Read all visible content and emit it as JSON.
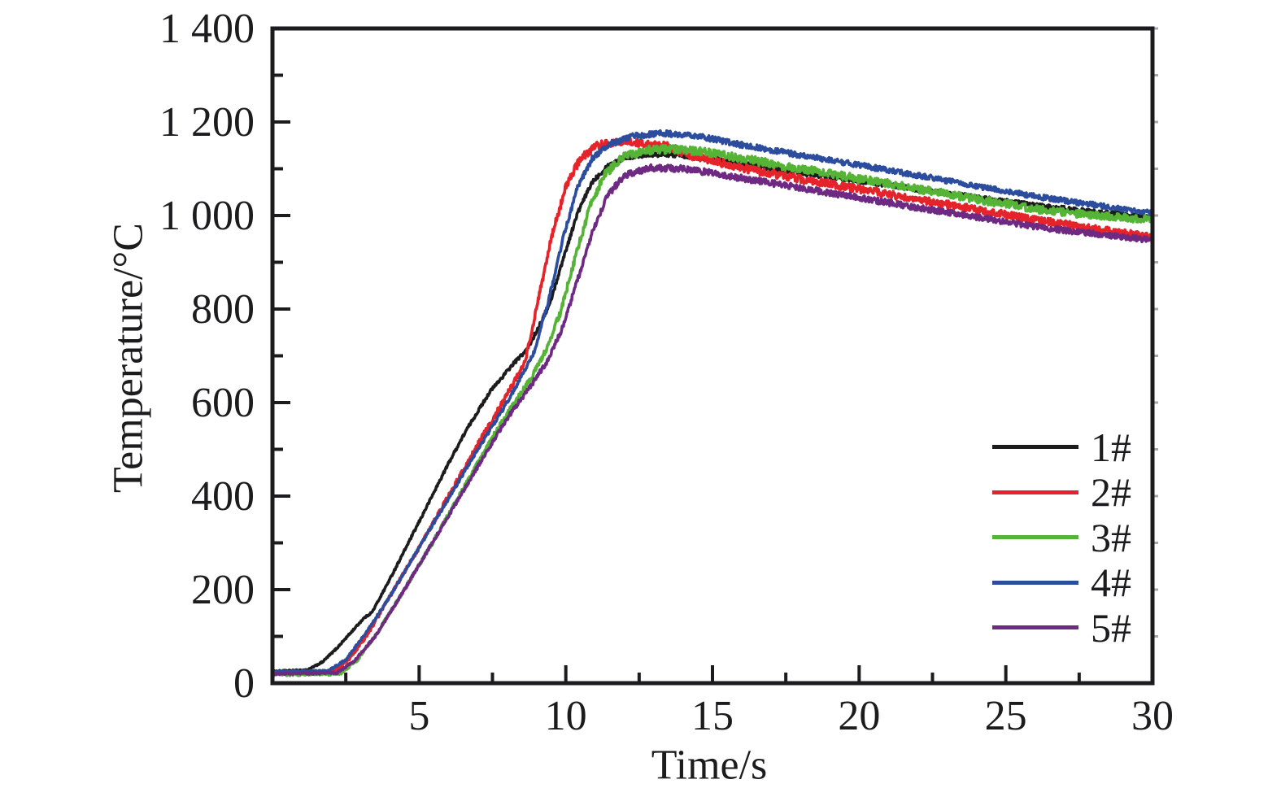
{
  "figure": {
    "background": "#ffffff",
    "frame_color": "#1c1b1d",
    "tick_color": "#1c1b1d",
    "right_edge_minor_tick_color": "#a8a8a8"
  },
  "chart_data": {
    "type": "line",
    "title": "",
    "xlabel": "Time/s",
    "ylabel": "Temperature/°C",
    "xlim": [
      0,
      30
    ],
    "ylim": [
      0,
      1400
    ],
    "grid": false,
    "legend_position": "inside-lower-right",
    "x_ticks": [
      {
        "v": 5,
        "label": "5"
      },
      {
        "v": 10,
        "label": "10"
      },
      {
        "v": 15,
        "label": "15"
      },
      {
        "v": 20,
        "label": "20"
      },
      {
        "v": 25,
        "label": "25"
      },
      {
        "v": 30,
        "label": "30"
      }
    ],
    "x_minor_step": 2.5,
    "y_ticks": [
      {
        "v": 0,
        "label": "0"
      },
      {
        "v": 200,
        "label": "200"
      },
      {
        "v": 400,
        "label": "400"
      },
      {
        "v": 600,
        "label": "600"
      },
      {
        "v": 800,
        "label": "800"
      },
      {
        "v": 1000,
        "label": "1 000"
      },
      {
        "v": 1200,
        "label": "1 200"
      },
      {
        "v": 1400,
        "label": "1 400"
      }
    ],
    "y_minor_step": 100,
    "series": [
      {
        "name": "1#",
        "color": "#1c1b1d",
        "noise_amplitude_c": 5,
        "points": [
          [
            0,
            25
          ],
          [
            1.2,
            28
          ],
          [
            1.7,
            45
          ],
          [
            2.2,
            75
          ],
          [
            2.7,
            110
          ],
          [
            3.1,
            138
          ],
          [
            3.4,
            152
          ],
          [
            4,
            222
          ],
          [
            5,
            345
          ],
          [
            6,
            470
          ],
          [
            6.6,
            540
          ],
          [
            7.4,
            622
          ],
          [
            8.2,
            682
          ],
          [
            8.7,
            715
          ],
          [
            9.1,
            765
          ],
          [
            9.45,
            810
          ],
          [
            9.9,
            905
          ],
          [
            10.4,
            1005
          ],
          [
            10.9,
            1072
          ],
          [
            11.4,
            1105
          ],
          [
            12,
            1124
          ],
          [
            12.8,
            1131
          ],
          [
            13.8,
            1130
          ],
          [
            15,
            1121
          ],
          [
            16,
            1111
          ],
          [
            18,
            1091
          ],
          [
            20,
            1074
          ],
          [
            22,
            1056
          ],
          [
            24,
            1039
          ],
          [
            26,
            1022
          ],
          [
            28,
            1008
          ],
          [
            30,
            997
          ]
        ]
      },
      {
        "name": "2#",
        "color": "#e4232a",
        "noise_amplitude_c": 9,
        "points": [
          [
            0,
            22
          ],
          [
            2.1,
            24
          ],
          [
            2.6,
            50
          ],
          [
            3.2,
            100
          ],
          [
            4,
            185
          ],
          [
            5,
            290
          ],
          [
            6,
            400
          ],
          [
            7,
            510
          ],
          [
            7.7,
            585
          ],
          [
            8.2,
            640
          ],
          [
            8.6,
            685
          ],
          [
            9,
            800
          ],
          [
            9.5,
            950
          ],
          [
            10,
            1062
          ],
          [
            10.5,
            1122
          ],
          [
            11,
            1148
          ],
          [
            11.7,
            1158
          ],
          [
            12.5,
            1155
          ],
          [
            13.5,
            1147
          ],
          [
            14.3,
            1128
          ],
          [
            15,
            1118
          ],
          [
            16,
            1102
          ],
          [
            18,
            1078
          ],
          [
            20,
            1057
          ],
          [
            22,
            1034
          ],
          [
            24,
            1013
          ],
          [
            26,
            991
          ],
          [
            28,
            972
          ],
          [
            30,
            953
          ]
        ]
      },
      {
        "name": "3#",
        "color": "#55b436",
        "noise_amplitude_c": 9,
        "points": [
          [
            0,
            18
          ],
          [
            2.3,
            20
          ],
          [
            2.9,
            50
          ],
          [
            3.6,
            110
          ],
          [
            4.5,
            200
          ],
          [
            5.5,
            305
          ],
          [
            6.5,
            415
          ],
          [
            7.5,
            525
          ],
          [
            8.2,
            595
          ],
          [
            8.8,
            650
          ],
          [
            9.3,
            710
          ],
          [
            9.8,
            790
          ],
          [
            10.3,
            905
          ],
          [
            10.8,
            1015
          ],
          [
            11.3,
            1085
          ],
          [
            11.9,
            1124
          ],
          [
            12.7,
            1140
          ],
          [
            13.8,
            1142
          ],
          [
            15,
            1134
          ],
          [
            16,
            1122
          ],
          [
            18,
            1100
          ],
          [
            20,
            1079
          ],
          [
            22,
            1057
          ],
          [
            24,
            1035
          ],
          [
            26,
            1014
          ],
          [
            28,
            1000
          ],
          [
            30,
            991
          ]
        ]
      },
      {
        "name": "4#",
        "color": "#2c4d9d",
        "noise_amplitude_c": 6,
        "points": [
          [
            0,
            24
          ],
          [
            1.9,
            26
          ],
          [
            2.5,
            50
          ],
          [
            3.1,
            100
          ],
          [
            4,
            185
          ],
          [
            5,
            290
          ],
          [
            6,
            395
          ],
          [
            7,
            500
          ],
          [
            7.8,
            580
          ],
          [
            8.4,
            645
          ],
          [
            8.9,
            705
          ],
          [
            9.4,
            815
          ],
          [
            9.9,
            950
          ],
          [
            10.4,
            1060
          ],
          [
            10.9,
            1122
          ],
          [
            11.5,
            1152
          ],
          [
            12.3,
            1170
          ],
          [
            13.3,
            1176
          ],
          [
            14.3,
            1171
          ],
          [
            15,
            1164
          ],
          [
            16,
            1151
          ],
          [
            18,
            1129
          ],
          [
            20,
            1108
          ],
          [
            22,
            1086
          ],
          [
            24,
            1063
          ],
          [
            26,
            1041
          ],
          [
            28,
            1023
          ],
          [
            30,
            1005
          ]
        ]
      },
      {
        "name": "5#",
        "color": "#6e2a82",
        "noise_amplitude_c": 7,
        "points": [
          [
            0,
            20
          ],
          [
            2.2,
            22
          ],
          [
            2.8,
            48
          ],
          [
            3.5,
            100
          ],
          [
            4.4,
            190
          ],
          [
            5.4,
            295
          ],
          [
            6.4,
            400
          ],
          [
            7.4,
            505
          ],
          [
            8.1,
            575
          ],
          [
            8.8,
            635
          ],
          [
            9.4,
            692
          ],
          [
            9.9,
            762
          ],
          [
            10.4,
            862
          ],
          [
            10.9,
            962
          ],
          [
            11.4,
            1042
          ],
          [
            12,
            1086
          ],
          [
            12.9,
            1102
          ],
          [
            14,
            1100
          ],
          [
            15,
            1091
          ],
          [
            16,
            1080
          ],
          [
            18,
            1059
          ],
          [
            20,
            1038
          ],
          [
            22,
            1017
          ],
          [
            24,
            997
          ],
          [
            26,
            976
          ],
          [
            28,
            961
          ],
          [
            30,
            947
          ]
        ]
      }
    ]
  }
}
